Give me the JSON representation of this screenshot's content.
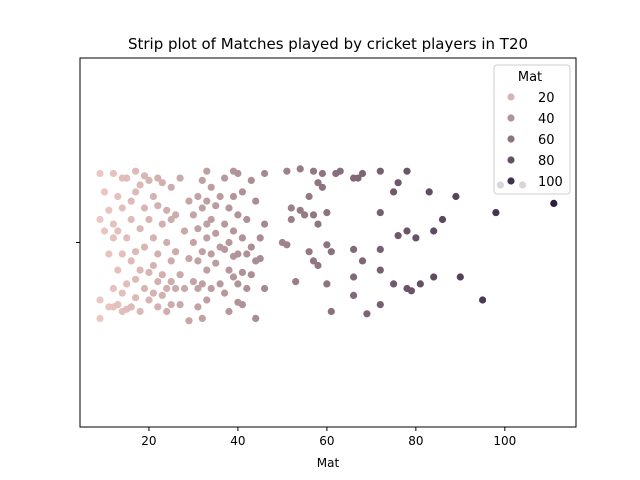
{
  "chart_data": {
    "type": "scatter",
    "subtype": "strip",
    "title": "Strip plot of Matches played by cricket players in T20",
    "xlabel": "Mat",
    "ylabel": "",
    "xlim": [
      4.5,
      116
    ],
    "xticks": [
      20,
      40,
      60,
      80,
      100
    ],
    "grid": false,
    "legend": {
      "title": "Mat",
      "placement": "top-right",
      "entries": [
        "20",
        "40",
        "60",
        "80",
        "100"
      ],
      "entry_values": [
        20,
        40,
        60,
        80,
        100
      ]
    },
    "hue_range": [
      9,
      111
    ],
    "color_light": "#ebc7c1",
    "color_dark": "#2d1e3e",
    "jitter_bounds": [
      -0.4,
      0.4
    ],
    "points": [
      {
        "x": 9,
        "j": 0.3
      },
      {
        "x": 9,
        "j": 0.1
      },
      {
        "x": 9,
        "j": -0.25
      },
      {
        "x": 9,
        "j": -0.33
      },
      {
        "x": 10,
        "j": 0.05
      },
      {
        "x": 10,
        "j": 0.22
      },
      {
        "x": 11,
        "j": -0.05
      },
      {
        "x": 11,
        "j": -0.28
      },
      {
        "x": 11,
        "j": 0.14
      },
      {
        "x": 12,
        "j": 0.3
      },
      {
        "x": 12,
        "j": 0.08
      },
      {
        "x": 12,
        "j": -0.2
      },
      {
        "x": 12,
        "j": -0.28
      },
      {
        "x": 12,
        "j": 0.02
      },
      {
        "x": 13,
        "j": 0.2
      },
      {
        "x": 13,
        "j": -0.12
      },
      {
        "x": 13,
        "j": -0.27
      },
      {
        "x": 13,
        "j": 0.05
      },
      {
        "x": 14,
        "j": 0.28
      },
      {
        "x": 14,
        "j": 0.15
      },
      {
        "x": 14,
        "j": -0.05
      },
      {
        "x": 14,
        "j": -0.22
      },
      {
        "x": 14,
        "j": -0.3
      },
      {
        "x": 15,
        "j": 0.28
      },
      {
        "x": 15,
        "j": 0.02
      },
      {
        "x": 15,
        "j": -0.18
      },
      {
        "x": 15,
        "j": -0.29
      },
      {
        "x": 16,
        "j": 0.18
      },
      {
        "x": 16,
        "j": 0.1
      },
      {
        "x": 16,
        "j": -0.08
      },
      {
        "x": 16,
        "j": -0.28
      },
      {
        "x": 17,
        "j": 0.31
      },
      {
        "x": 17,
        "j": 0.22
      },
      {
        "x": 17,
        "j": -0.04
      },
      {
        "x": 17,
        "j": -0.16
      },
      {
        "x": 17,
        "j": -0.24
      },
      {
        "x": 18,
        "j": 0.25
      },
      {
        "x": 18,
        "j": 0.06
      },
      {
        "x": 18,
        "j": -0.3
      },
      {
        "x": 18,
        "j": -0.12
      },
      {
        "x": 19,
        "j": 0.29
      },
      {
        "x": 19,
        "j": 0.15
      },
      {
        "x": 19,
        "j": -0.02
      },
      {
        "x": 19,
        "j": -0.2
      },
      {
        "x": 20,
        "j": 0.27
      },
      {
        "x": 20,
        "j": 0.1
      },
      {
        "x": 20,
        "j": -0.13
      },
      {
        "x": 20,
        "j": -0.25
      },
      {
        "x": 21,
        "j": 0.2
      },
      {
        "x": 21,
        "j": 0.02
      },
      {
        "x": 21,
        "j": -0.22
      },
      {
        "x": 21,
        "j": -0.1
      },
      {
        "x": 22,
        "j": 0.28
      },
      {
        "x": 22,
        "j": 0.16
      },
      {
        "x": 22,
        "j": -0.05
      },
      {
        "x": 22,
        "j": -0.28
      },
      {
        "x": 22,
        "j": -0.17
      },
      {
        "x": 23,
        "j": 0.26
      },
      {
        "x": 23,
        "j": 0.08
      },
      {
        "x": 23,
        "j": -0.14
      },
      {
        "x": 23,
        "j": -0.23
      },
      {
        "x": 24,
        "j": 0.14
      },
      {
        "x": 24,
        "j": 0.0
      },
      {
        "x": 24,
        "j": -0.2
      },
      {
        "x": 24,
        "j": -0.3
      },
      {
        "x": 25,
        "j": 0.24
      },
      {
        "x": 25,
        "j": 0.1
      },
      {
        "x": 25,
        "j": -0.08
      },
      {
        "x": 25,
        "j": -0.27
      },
      {
        "x": 25,
        "j": -0.17
      },
      {
        "x": 26,
        "j": 0.12
      },
      {
        "x": 26,
        "j": -0.04
      },
      {
        "x": 26,
        "j": -0.2
      },
      {
        "x": 27,
        "j": 0.28
      },
      {
        "x": 27,
        "j": -0.14
      },
      {
        "x": 27,
        "j": -0.27
      },
      {
        "x": 28,
        "j": 0.05
      },
      {
        "x": 28,
        "j": -0.2
      },
      {
        "x": 29,
        "j": 0.18
      },
      {
        "x": 29,
        "j": -0.07
      },
      {
        "x": 29,
        "j": -0.34
      },
      {
        "x": 30,
        "j": 0.12
      },
      {
        "x": 30,
        "j": 0.0
      },
      {
        "x": 30,
        "j": -0.17
      },
      {
        "x": 31,
        "j": 0.2
      },
      {
        "x": 31,
        "j": 0.06
      },
      {
        "x": 31,
        "j": -0.08
      },
      {
        "x": 31,
        "j": -0.28
      },
      {
        "x": 31,
        "j": -0.2
      },
      {
        "x": 32,
        "j": 0.27
      },
      {
        "x": 32,
        "j": 0.15
      },
      {
        "x": 32,
        "j": -0.04
      },
      {
        "x": 32,
        "j": -0.33
      },
      {
        "x": 32,
        "j": -0.18
      },
      {
        "x": 33,
        "j": 0.31
      },
      {
        "x": 33,
        "j": 0.18
      },
      {
        "x": 33,
        "j": 0.02
      },
      {
        "x": 33,
        "j": -0.12
      },
      {
        "x": 33,
        "j": -0.25
      },
      {
        "x": 33,
        "j": 0.08
      },
      {
        "x": 34,
        "j": 0.24
      },
      {
        "x": 34,
        "j": 0.1
      },
      {
        "x": 34,
        "j": -0.05
      },
      {
        "x": 34,
        "j": -0.2
      },
      {
        "x": 35,
        "j": 0.16
      },
      {
        "x": 35,
        "j": 0.04
      },
      {
        "x": 35,
        "j": -0.09
      },
      {
        "x": 36,
        "j": 0.2
      },
      {
        "x": 36,
        "j": -0.02
      },
      {
        "x": 36,
        "j": -0.18
      },
      {
        "x": 37,
        "j": 0.28
      },
      {
        "x": 37,
        "j": 0.08
      },
      {
        "x": 37,
        "j": -0.03
      },
      {
        "x": 37,
        "j": -0.22
      },
      {
        "x": 38,
        "j": 0.15
      },
      {
        "x": 38,
        "j": 0.0
      },
      {
        "x": 38,
        "j": -0.12
      },
      {
        "x": 38,
        "j": -0.3
      },
      {
        "x": 39,
        "j": 0.31
      },
      {
        "x": 39,
        "j": 0.2
      },
      {
        "x": 39,
        "j": -0.06
      },
      {
        "x": 39,
        "j": -0.15
      },
      {
        "x": 39,
        "j": 0.05
      },
      {
        "x": 40,
        "j": 0.3
      },
      {
        "x": 40,
        "j": 0.12
      },
      {
        "x": 40,
        "j": -0.05
      },
      {
        "x": 40,
        "j": -0.18
      },
      {
        "x": 40,
        "j": -0.26
      },
      {
        "x": 41,
        "j": 0.22
      },
      {
        "x": 41,
        "j": 0.02
      },
      {
        "x": 41,
        "j": -0.13
      },
      {
        "x": 41,
        "j": -0.27
      },
      {
        "x": 42,
        "j": 0.1
      },
      {
        "x": 42,
        "j": -0.05
      },
      {
        "x": 42,
        "j": -0.2
      },
      {
        "x": 43,
        "j": 0.27
      },
      {
        "x": 43,
        "j": -0.02
      },
      {
        "x": 43,
        "j": -0.14
      },
      {
        "x": 44,
        "j": 0.18
      },
      {
        "x": 44,
        "j": -0.08
      },
      {
        "x": 44,
        "j": -0.33
      },
      {
        "x": 45,
        "j": 0.02
      },
      {
        "x": 45,
        "j": -0.07
      },
      {
        "x": 46,
        "j": 0.3
      },
      {
        "x": 46,
        "j": 0.08
      },
      {
        "x": 46,
        "j": -0.2
      },
      {
        "x": 50,
        "j": 0.0
      },
      {
        "x": 51,
        "j": 0.31
      },
      {
        "x": 51,
        "j": -0.01
      },
      {
        "x": 52,
        "j": 0.15
      },
      {
        "x": 52,
        "j": 0.1
      },
      {
        "x": 53,
        "j": -0.17
      },
      {
        "x": 54,
        "j": 0.32
      },
      {
        "x": 54,
        "j": 0.14
      },
      {
        "x": 55,
        "j": 0.12
      },
      {
        "x": 56,
        "j": 0.2
      },
      {
        "x": 56,
        "j": -0.04
      },
      {
        "x": 57,
        "j": 0.12
      },
      {
        "x": 57,
        "j": -0.08
      },
      {
        "x": 57,
        "j": 0.31
      },
      {
        "x": 58,
        "j": 0.26
      },
      {
        "x": 58,
        "j": 0.08
      },
      {
        "x": 58,
        "j": -0.1
      },
      {
        "x": 59,
        "j": 0.3
      },
      {
        "x": 59,
        "j": 0.24
      },
      {
        "x": 60,
        "j": 0.13
      },
      {
        "x": 60,
        "j": -0.01
      },
      {
        "x": 60,
        "j": -0.18
      },
      {
        "x": 61,
        "j": -0.04
      },
      {
        "x": 61,
        "j": -0.3
      },
      {
        "x": 62,
        "j": 0.3
      },
      {
        "x": 63,
        "j": 0.31
      },
      {
        "x": 66,
        "j": 0.28
      },
      {
        "x": 66,
        "j": -0.03
      },
      {
        "x": 66,
        "j": -0.15
      },
      {
        "x": 66,
        "j": -0.23
      },
      {
        "x": 67,
        "j": 0.28
      },
      {
        "x": 68,
        "j": 0.3
      },
      {
        "x": 68,
        "j": -0.08
      },
      {
        "x": 69,
        "j": -0.31
      },
      {
        "x": 72,
        "j": 0.31
      },
      {
        "x": 72,
        "j": 0.13
      },
      {
        "x": 72,
        "j": -0.03
      },
      {
        "x": 72,
        "j": -0.12
      },
      {
        "x": 72,
        "j": -0.27
      },
      {
        "x": 75,
        "j": 0.22
      },
      {
        "x": 75,
        "j": -0.18
      },
      {
        "x": 76,
        "j": 0.26
      },
      {
        "x": 76,
        "j": 0.03
      },
      {
        "x": 78,
        "j": 0.31
      },
      {
        "x": 78,
        "j": 0.05
      },
      {
        "x": 78,
        "j": -0.2
      },
      {
        "x": 79,
        "j": -0.21
      },
      {
        "x": 80,
        "j": 0.02
      },
      {
        "x": 81,
        "j": -0.18
      },
      {
        "x": 83,
        "j": 0.22
      },
      {
        "x": 84,
        "j": 0.05
      },
      {
        "x": 84,
        "j": -0.15
      },
      {
        "x": 86,
        "j": 0.1
      },
      {
        "x": 89,
        "j": 0.2
      },
      {
        "x": 90,
        "j": -0.15
      },
      {
        "x": 95,
        "j": -0.25
      },
      {
        "x": 98,
        "j": 0.13
      },
      {
        "x": 99,
        "j": 0.25
      },
      {
        "x": 104,
        "j": 0.25
      },
      {
        "x": 111,
        "j": 0.17
      }
    ]
  }
}
